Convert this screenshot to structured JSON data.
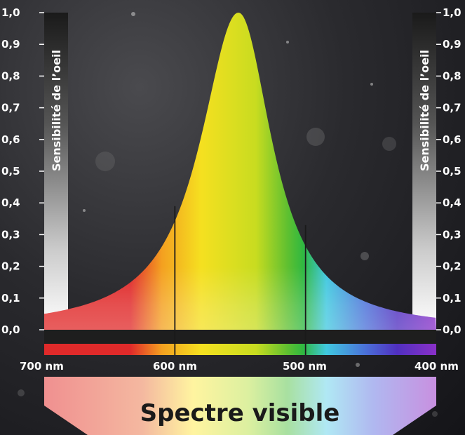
{
  "y_ticks": [
    "1,0",
    "0,9",
    "0,8",
    "0,7",
    "0,6",
    "0,5",
    "0,4",
    "0,3",
    "0,2",
    "0,1",
    "0,0"
  ],
  "y_axis_label": "Sensibilité de l’oeil",
  "wavelength_labels": [
    "700 nm",
    "600 nm",
    "500 nm",
    "400 nm"
  ],
  "title": "Spectre visible",
  "spectrum_colors": [
    "#e02a2a",
    "#f4a020",
    "#f5e020",
    "#a8d020",
    "#30b840",
    "#40c8e0",
    "#3050c8",
    "#8a30c8"
  ],
  "markers": [
    {
      "wavelength_nm": 600,
      "sensitivity": 0.39
    },
    {
      "wavelength_nm": 500,
      "sensitivity": 0.33
    }
  ],
  "peak_sensitivity": 1.0
}
